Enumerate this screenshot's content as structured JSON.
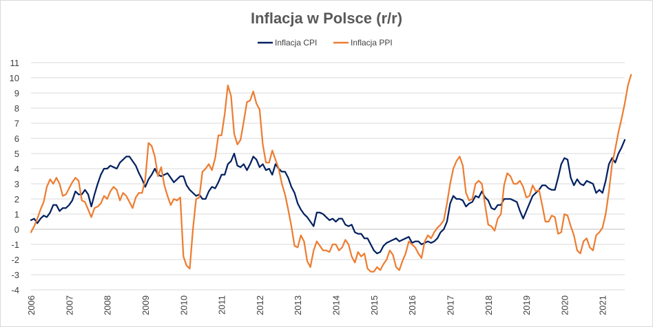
{
  "chart_data": {
    "type": "line",
    "title": "Inflacja w Polsce (r/r)",
    "xlabel": "",
    "ylabel": "",
    "ylim": [
      -4,
      11
    ],
    "yticks": [
      "-4",
      "-3",
      "-2",
      "-1",
      "0",
      "1",
      "2",
      "3",
      "4",
      "5",
      "6",
      "7",
      "8",
      "9",
      "10",
      "11"
    ],
    "x_start": "2006-01",
    "x_end": "2021-09",
    "xticks": [
      "2006",
      "2007",
      "2008",
      "2009",
      "2010",
      "2011",
      "2012",
      "2013",
      "2014",
      "2015",
      "2016",
      "2017",
      "2018",
      "2019",
      "2020",
      "2021"
    ],
    "grid": "horizontal",
    "legend_position": "top",
    "series": [
      {
        "name": "Inflacja CPI",
        "color": "#002060",
        "values": [
          0.6,
          0.7,
          0.4,
          0.7,
          0.9,
          0.8,
          1.1,
          1.6,
          1.6,
          1.2,
          1.4,
          1.4,
          1.6,
          1.9,
          2.5,
          2.3,
          2.3,
          2.6,
          2.3,
          1.5,
          2.3,
          3.0,
          3.6,
          4.0,
          4.0,
          4.2,
          4.1,
          4.0,
          4.4,
          4.6,
          4.8,
          4.8,
          4.5,
          4.2,
          3.7,
          3.3,
          2.8,
          3.3,
          3.6,
          4.0,
          3.6,
          3.5,
          3.6,
          3.7,
          3.4,
          3.1,
          3.3,
          3.5,
          3.5,
          2.9,
          2.6,
          2.4,
          2.2,
          2.3,
          2.0,
          2.0,
          2.5,
          2.8,
          2.7,
          3.1,
          3.6,
          3.6,
          4.3,
          4.5,
          5.0,
          4.2,
          4.1,
          4.3,
          3.9,
          4.3,
          4.8,
          4.6,
          4.1,
          4.3,
          3.9,
          4.0,
          3.6,
          4.3,
          4.0,
          3.8,
          3.8,
          3.4,
          2.8,
          2.4,
          1.7,
          1.3,
          1.0,
          0.8,
          0.5,
          0.2,
          1.1,
          1.1,
          1.0,
          0.8,
          0.6,
          0.7,
          0.5,
          0.7,
          0.7,
          0.3,
          0.2,
          0.3,
          -0.2,
          -0.3,
          -0.3,
          -0.6,
          -0.6,
          -1.0,
          -1.4,
          -1.6,
          -1.5,
          -1.1,
          -0.9,
          -0.8,
          -0.7,
          -0.6,
          -0.8,
          -0.7,
          -0.6,
          -0.5,
          -0.9,
          -0.8,
          -0.8,
          -1.0,
          -0.9,
          -0.8,
          -0.9,
          -0.8,
          -0.6,
          -0.2,
          0.0,
          0.5,
          1.7,
          2.2,
          2.0,
          2.0,
          1.9,
          1.5,
          1.7,
          1.8,
          2.2,
          2.1,
          2.5,
          2.1,
          1.9,
          1.4,
          1.3,
          1.6,
          1.6,
          2.0,
          2.0,
          2.0,
          1.9,
          1.8,
          1.2,
          0.7,
          1.2,
          1.7,
          2.2,
          2.4,
          2.6,
          2.9,
          2.9,
          2.7,
          2.6,
          2.6,
          3.4,
          4.3,
          4.7,
          4.6,
          3.4,
          2.9,
          3.3,
          3.0,
          2.9,
          3.2,
          3.1,
          3.0,
          2.4,
          2.6,
          2.4,
          3.2,
          4.3,
          4.7,
          4.4,
          5.0,
          5.4,
          5.9
        ]
      },
      {
        "name": "Inflacja PPI",
        "color": "#ed7d31",
        "values": [
          -0.2,
          0.2,
          0.7,
          1.3,
          1.8,
          2.8,
          3.3,
          3.0,
          3.4,
          3.0,
          2.2,
          2.3,
          2.7,
          3.1,
          3.4,
          3.2,
          1.9,
          1.8,
          1.3,
          0.8,
          1.4,
          1.5,
          1.7,
          2.2,
          2.0,
          2.5,
          2.8,
          2.6,
          1.9,
          2.4,
          2.2,
          1.8,
          1.4,
          2.1,
          2.4,
          2.4,
          3.3,
          5.7,
          5.5,
          4.8,
          3.5,
          4.1,
          2.9,
          2.2,
          1.6,
          2.0,
          1.9,
          2.1,
          -1.8,
          -2.4,
          -2.6,
          0.0,
          2.0,
          2.1,
          3.8,
          4.0,
          4.3,
          3.9,
          4.7,
          6.2,
          6.2,
          7.6,
          9.5,
          8.8,
          6.3,
          5.6,
          5.9,
          7.1,
          8.4,
          8.5,
          9.1,
          8.3,
          7.9,
          5.6,
          4.4,
          4.4,
          5.2,
          4.6,
          4.0,
          3.0,
          2.3,
          1.3,
          0.2,
          -1.1,
          -1.2,
          -0.4,
          -0.8,
          -2.1,
          -2.5,
          -1.4,
          -0.8,
          -1.1,
          -1.4,
          -1.4,
          -1.5,
          -1.0,
          -1.0,
          -1.4,
          -1.2,
          -0.7,
          -1.0,
          -1.8,
          -2.2,
          -1.5,
          -1.8,
          -1.6,
          -2.6,
          -2.8,
          -2.8,
          -2.5,
          -2.7,
          -2.3,
          -2.0,
          -1.4,
          -1.7,
          -2.5,
          -2.7,
          -2.1,
          -1.6,
          -0.8,
          -1.0,
          -1.2,
          -1.6,
          -1.9,
          -0.8,
          -0.4,
          -0.6,
          -0.2,
          0.1,
          0.3,
          0.6,
          1.7,
          3.0,
          4.0,
          4.5,
          4.8,
          4.2,
          2.4,
          1.9,
          2.0,
          3.0,
          3.2,
          3.0,
          1.6,
          0.3,
          0.2,
          -0.1,
          0.7,
          1.0,
          2.9,
          3.7,
          3.5,
          3.0,
          3.0,
          3.2,
          2.8,
          2.1,
          2.2,
          2.9,
          2.5,
          2.6,
          1.6,
          0.5,
          0.5,
          0.9,
          0.8,
          -0.3,
          -0.2,
          1.0,
          0.9,
          0.2,
          -0.4,
          -1.4,
          -1.6,
          -0.8,
          -0.6,
          -1.2,
          -1.4,
          -0.4,
          -0.2,
          0.1,
          1.0,
          2.5,
          4.3,
          5.3,
          6.4,
          7.3,
          8.3,
          9.5,
          10.2
        ]
      }
    ]
  }
}
